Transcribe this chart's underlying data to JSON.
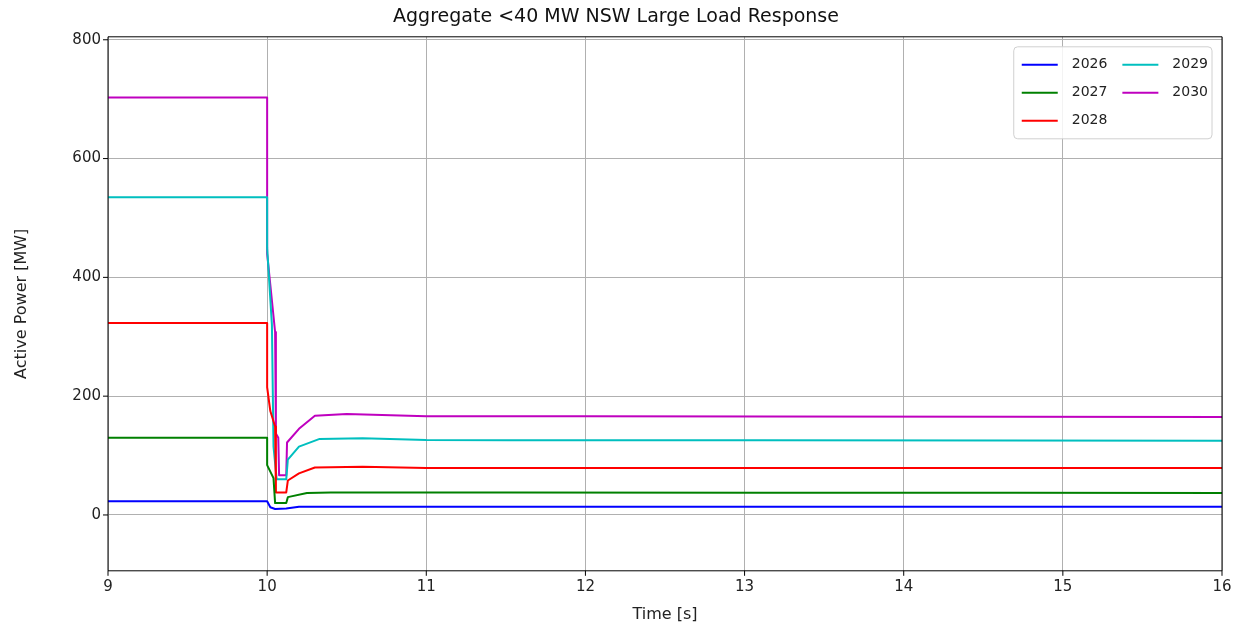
{
  "chart_data": {
    "type": "line",
    "title": "Aggregate <40 MW NSW Large Load Response",
    "xlabel": "Time [s]",
    "ylabel": "Active Power [MW]",
    "xlim": [
      9,
      16
    ],
    "xticks": [
      9,
      10,
      11,
      12,
      13,
      14,
      15,
      16
    ],
    "ylim": [
      -94,
      805
    ],
    "yticks": [
      0,
      200,
      400,
      600,
      800
    ],
    "grid": true,
    "legend": "top right",
    "marker": "none",
    "line_style": "solid",
    "series": [
      {
        "name": "2026",
        "color": "#0000ff",
        "x": [
          9,
          10,
          10.02,
          10.05,
          10.12,
          10.2,
          16
        ],
        "values": [
          23,
          23,
          13,
          10,
          11,
          14,
          14
        ]
      },
      {
        "name": "2027",
        "color": "#008000",
        "x": [
          9,
          10,
          10,
          10.04,
          10.05,
          10.12,
          10.13,
          10.25,
          10.4,
          16
        ],
        "values": [
          130,
          130,
          84,
          62,
          20,
          20,
          30,
          37,
          38,
          37
        ]
      },
      {
        "name": "2028",
        "color": "#ff0000",
        "x": [
          9,
          10,
          10,
          10.02,
          10.05,
          10.055,
          10.12,
          10.13,
          10.2,
          10.3,
          10.6,
          11,
          16
        ],
        "values": [
          323,
          323,
          215,
          175,
          149,
          38,
          38,
          58,
          70,
          80,
          81,
          79,
          79
        ]
      },
      {
        "name": "2029",
        "color": "#00bfbf",
        "x": [
          9,
          10,
          10,
          10.03,
          10.04,
          10.06,
          10.12,
          10.13,
          10.2,
          10.33,
          10.6,
          11,
          16
        ],
        "values": [
          535,
          535,
          450,
          320,
          115,
          60,
          60,
          93,
          115,
          128,
          129,
          126,
          125
        ]
      },
      {
        "name": "2030",
        "color": "#bf00bf",
        "x": [
          9,
          10,
          10,
          10.05,
          10.055,
          10.07,
          10.075,
          10.12,
          10.125,
          10.2,
          10.3,
          10.5,
          11,
          12,
          16
        ],
        "values": [
          703,
          703,
          440,
          308,
          137,
          130,
          67,
          67,
          122,
          145,
          167,
          170,
          166,
          166,
          165
        ]
      }
    ]
  }
}
